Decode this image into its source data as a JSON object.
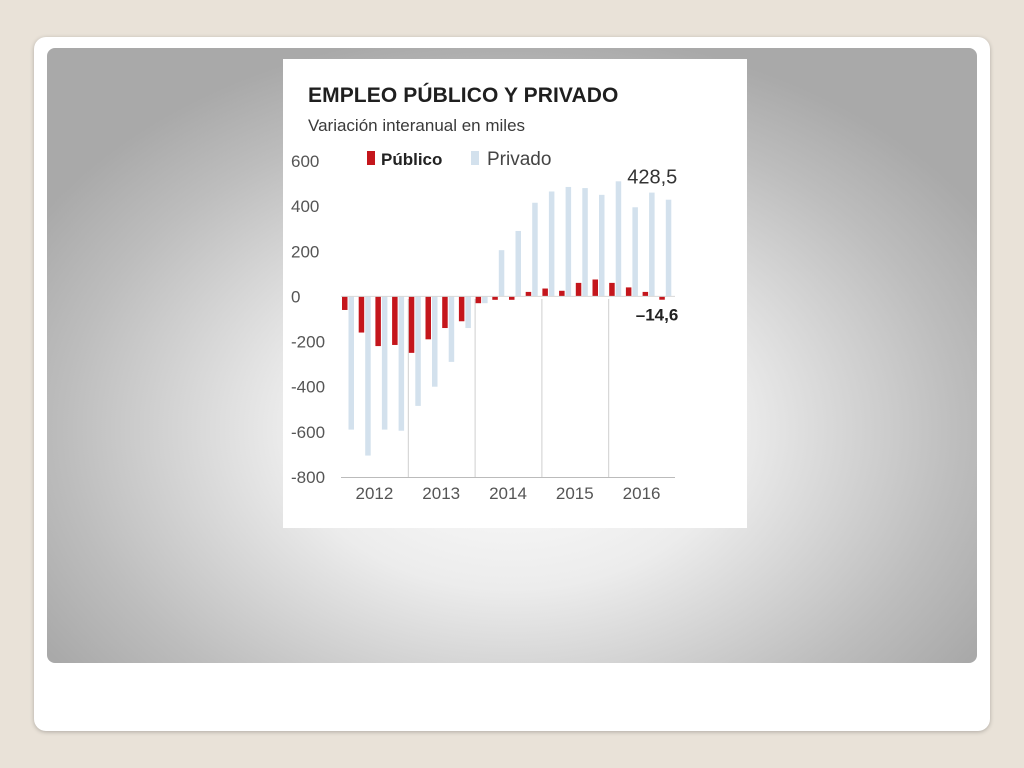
{
  "slide": {
    "background": "#e9e2d8"
  },
  "chart_data": {
    "type": "bar",
    "title": "EMPLEO PÚBLICO Y PRIVADO",
    "subtitle": "Variación interanual en  miles",
    "ylim": [
      -800,
      600
    ],
    "yticks": [
      "600",
      "400",
      "200",
      "0",
      "-200",
      "-400",
      "-600",
      "-800"
    ],
    "ytick_values": [
      600,
      400,
      200,
      0,
      -200,
      -400,
      -600,
      -800
    ],
    "year_labels": [
      "2012",
      "2013",
      "2014",
      "2015",
      "2016"
    ],
    "quarters_per_year": 4,
    "grid": false,
    "legend_position": "top-left",
    "series": [
      {
        "name": "Público",
        "color": "#c4161c",
        "values": [
          -60,
          -160,
          -220,
          -215,
          -250,
          -190,
          -140,
          -110,
          -30,
          -15,
          -15,
          20,
          35,
          25,
          60,
          75,
          60,
          40,
          20,
          -14.6
        ]
      },
      {
        "name": "Privado",
        "color": "#d3e1ed",
        "values": [
          -590,
          -705,
          -590,
          -595,
          -485,
          -400,
          -290,
          -140,
          -30,
          205,
          290,
          415,
          465,
          485,
          480,
          450,
          510,
          395,
          460,
          428.5
        ]
      }
    ],
    "annotations": [
      {
        "text": "428,5",
        "series": "Privado",
        "index": 19
      },
      {
        "text": "–14,6",
        "series": "Público",
        "index": 19
      }
    ]
  }
}
